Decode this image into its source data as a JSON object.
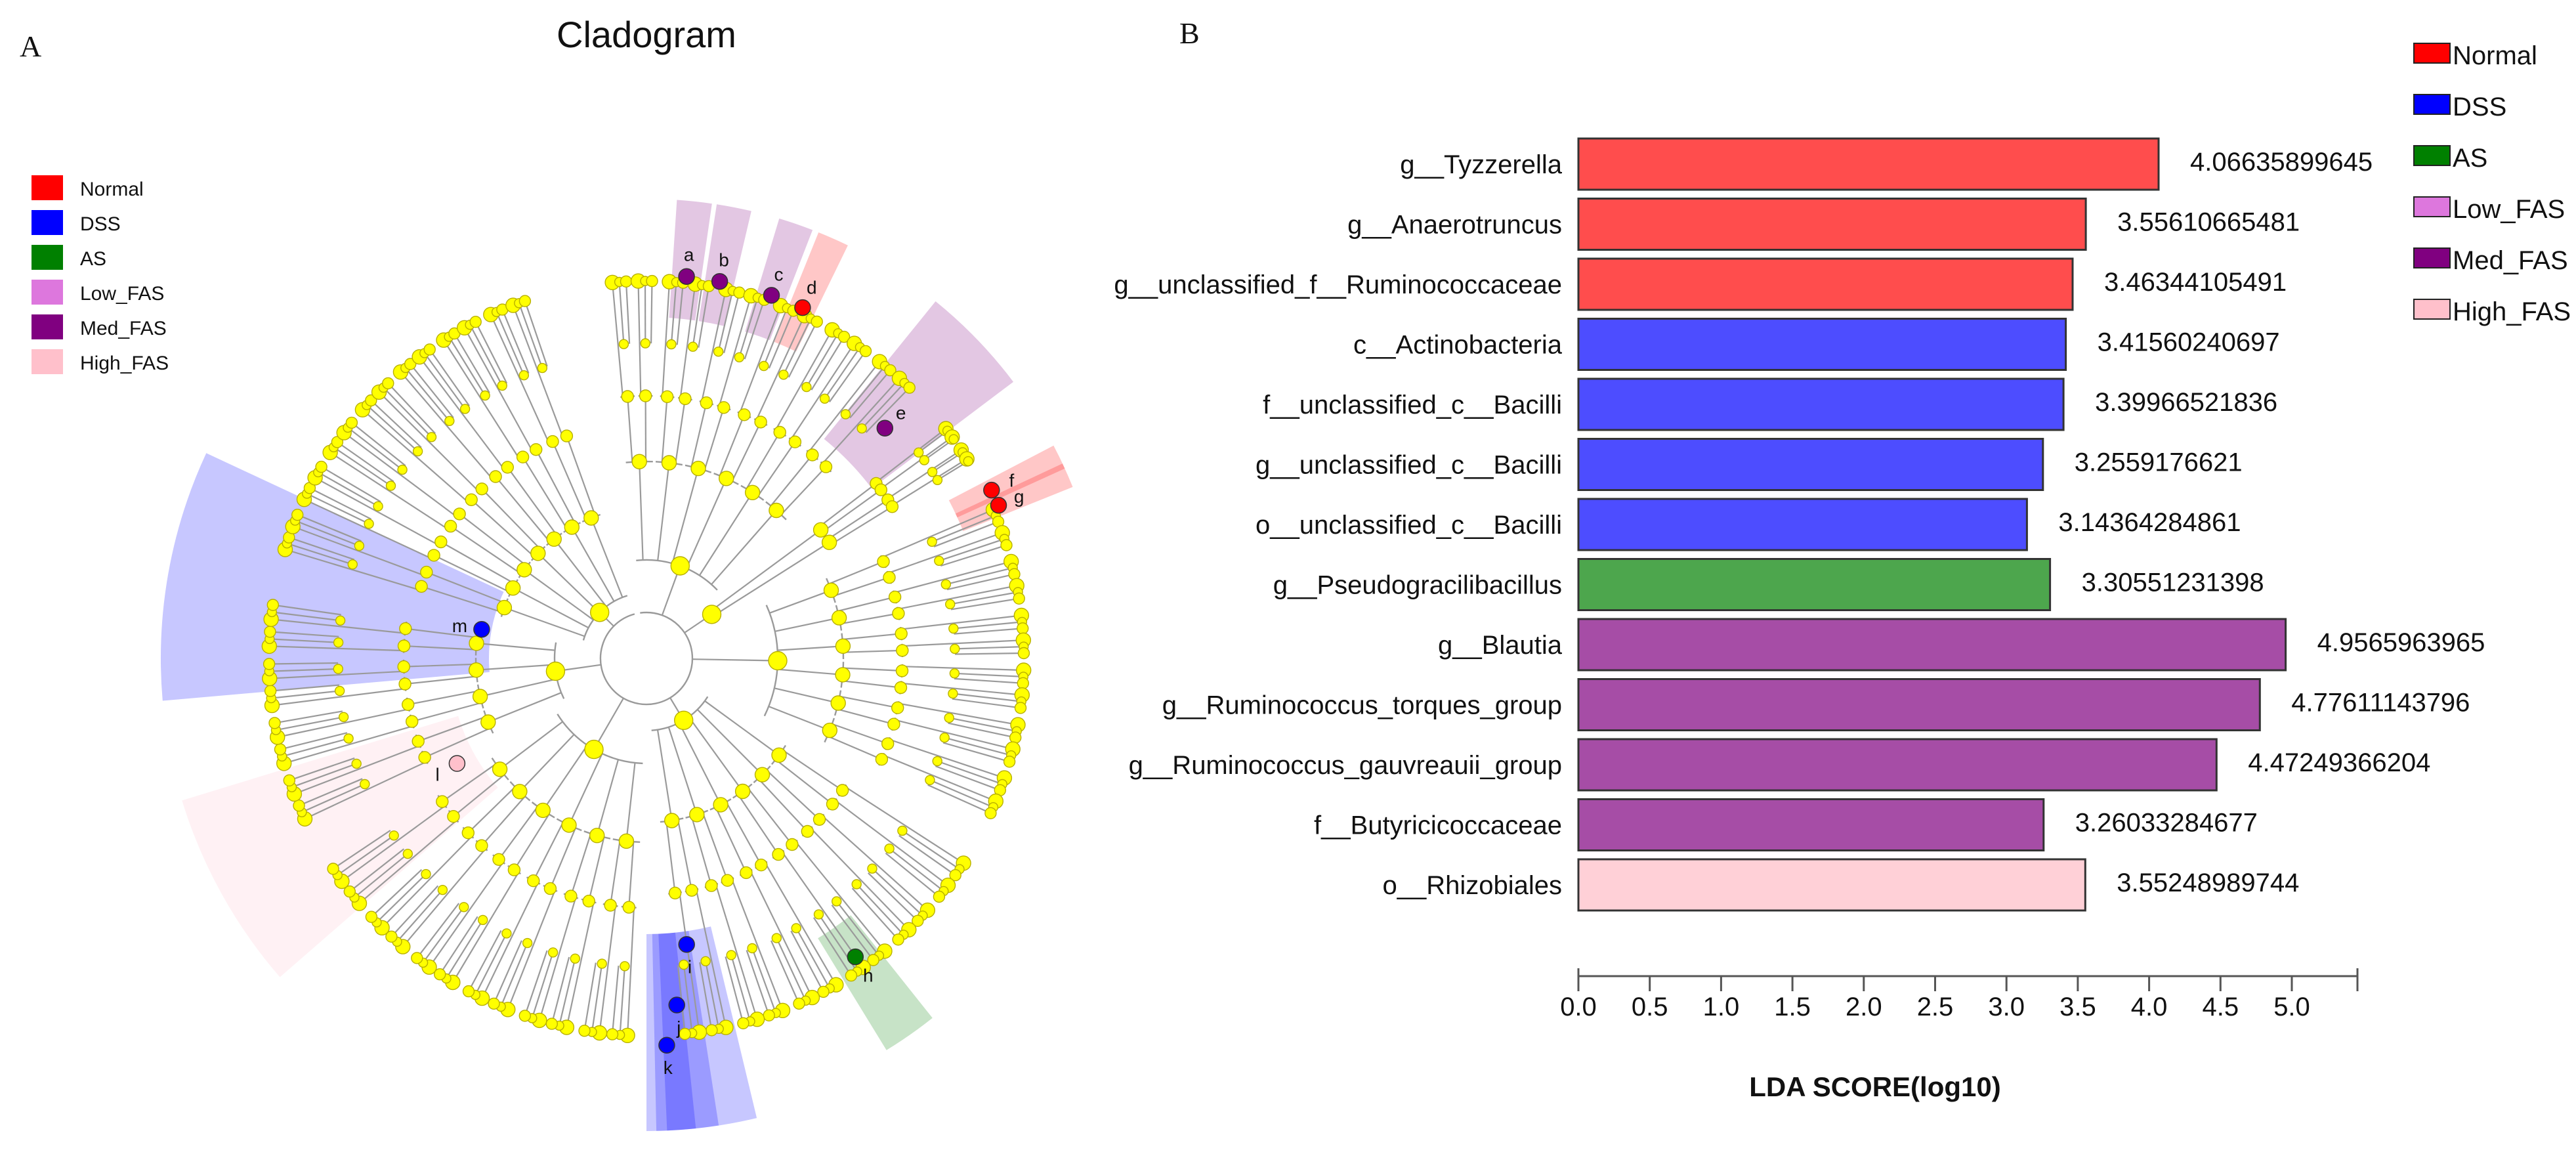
{
  "colors": {
    "Normal": "#ff0000",
    "DSS": "#0000ff",
    "AS": "#008000",
    "Low_FAS": "#dd77dd",
    "Med_FAS": "#800080",
    "High_FAS": "#ffc0cb",
    "node_default": "#ffff00"
  },
  "panel_a": {
    "letter": "A",
    "title": "Cladogram",
    "legend": [
      {
        "label": "Normal",
        "color_key": "Normal"
      },
      {
        "label": "DSS",
        "color_key": "DSS"
      },
      {
        "label": "AS",
        "color_key": "AS"
      },
      {
        "label": "Low_FAS",
        "color_key": "Low_FAS"
      },
      {
        "label": "Med_FAS",
        "color_key": "Med_FAS"
      },
      {
        "label": "High_FAS",
        "color_key": "High_FAS"
      }
    ],
    "markers": [
      {
        "label": "a",
        "group": "Med_FAS"
      },
      {
        "label": "b",
        "group": "Med_FAS"
      },
      {
        "label": "c",
        "group": "Med_FAS"
      },
      {
        "label": "d",
        "group": "Normal"
      },
      {
        "label": "e",
        "group": "Med_FAS"
      },
      {
        "label": "f",
        "group": "Normal"
      },
      {
        "label": "g",
        "group": "Normal"
      },
      {
        "label": "h",
        "group": "AS"
      },
      {
        "label": "i",
        "group": "DSS"
      },
      {
        "label": "j",
        "group": "DSS"
      },
      {
        "label": "k",
        "group": "DSS"
      },
      {
        "label": "l",
        "group": "High_FAS"
      },
      {
        "label": "m",
        "group": "DSS"
      }
    ]
  },
  "panel_b": {
    "letter": "B",
    "legend": [
      {
        "label": "Normal",
        "color": "#ff0000"
      },
      {
        "label": "DSS",
        "color": "#0000ff"
      },
      {
        "label": "AS",
        "color": "#008000"
      },
      {
        "label": "Low_FAS",
        "color": "#dd77dd"
      },
      {
        "label": "Med_FAS",
        "color": "#800080"
      },
      {
        "label": "High_FAS",
        "color": "#ffc0cb"
      }
    ]
  },
  "chart_data": {
    "type": "bar",
    "orientation": "horizontal",
    "xlabel": "LDA SCORE(log10)",
    "xlim": [
      0,
      5.5
    ],
    "xticks": [
      "0.0",
      "0.5",
      "1.0",
      "1.5",
      "2.0",
      "2.5",
      "3.0",
      "3.5",
      "4.0",
      "4.5",
      "5.0"
    ],
    "grid": false,
    "legend_position": "top-right",
    "bars": [
      {
        "label": "g__Tyzzerella",
        "value": 4.06635899645,
        "value_label": "4.06635899645",
        "group": "Normal",
        "color": "#ff4d4d"
      },
      {
        "label": "g__Anaerotruncus",
        "value": 3.55610665481,
        "value_label": "3.55610665481",
        "group": "Normal",
        "color": "#ff4d4d"
      },
      {
        "label": "g__unclassified_f__Ruminococcaceae",
        "value": 3.46344105491,
        "value_label": "3.46344105491",
        "group": "Normal",
        "color": "#ff4d4d"
      },
      {
        "label": "c__Actinobacteria",
        "value": 3.41560240697,
        "value_label": "3.41560240697",
        "group": "DSS",
        "color": "#4d4dff"
      },
      {
        "label": "f__unclassified_c__Bacilli",
        "value": 3.39966521836,
        "value_label": "3.39966521836",
        "group": "DSS",
        "color": "#4d4dff"
      },
      {
        "label": "g__unclassified_c__Bacilli",
        "value": 3.2559176621,
        "value_label": "3.2559176621",
        "group": "DSS",
        "color": "#4d4dff"
      },
      {
        "label": "o__unclassified_c__Bacilli",
        "value": 3.14364284861,
        "value_label": "3.14364284861",
        "group": "DSS",
        "color": "#4d4dff"
      },
      {
        "label": "g__Pseudogracilibacillus",
        "value": 3.30551231398,
        "value_label": "3.30551231398",
        "group": "AS",
        "color": "#4da64d"
      },
      {
        "label": "g__Blautia",
        "value": 4.9565963965,
        "value_label": "4.9565963965",
        "group": "Med_FAS",
        "color": "#a64da6"
      },
      {
        "label": "g__Ruminococcus_torques_group",
        "value": 4.77611143796,
        "value_label": "4.77611143796",
        "group": "Med_FAS",
        "color": "#a64da6"
      },
      {
        "label": "g__Ruminococcus_gauvreauii_group",
        "value": 4.47249366204,
        "value_label": "4.47249366204",
        "group": "Med_FAS",
        "color": "#a64da6"
      },
      {
        "label": "f__Butyricicoccaceae",
        "value": 3.26033284677,
        "value_label": "3.26033284677",
        "group": "Med_FAS",
        "color": "#a64da6"
      },
      {
        "label": "o__Rhizobiales",
        "value": 3.55248989744,
        "value_label": "3.55248989744",
        "group": "High_FAS",
        "color": "#ffd0d7"
      }
    ]
  }
}
